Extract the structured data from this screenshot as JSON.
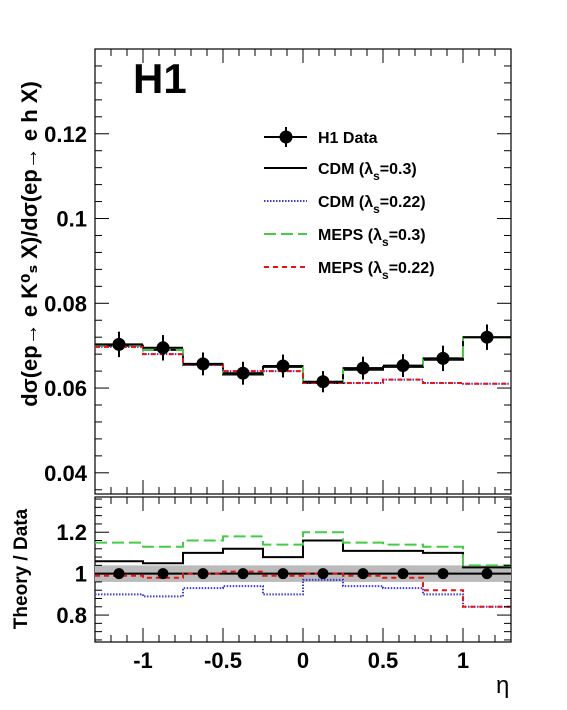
{
  "chart_data": [
    {
      "type": "line",
      "panel": "main",
      "badge": "H1",
      "ylabel": "dσ(ep→ e K⁰ₛ X)/dσ(ep→ e h X)",
      "xlim": [
        -1.3,
        1.3
      ],
      "ylim": [
        0.035,
        0.14
      ],
      "y_ticks": [
        0.04,
        0.06,
        0.08,
        0.1,
        0.12
      ],
      "y_tick_labels": [
        "0.04",
        "0.06",
        "0.08",
        "0.1",
        "0.12"
      ],
      "bin_edges": [
        -1.3,
        -1.0,
        -0.75,
        -0.5,
        -0.25,
        0.0,
        0.25,
        0.5,
        0.75,
        1.0,
        1.3
      ],
      "data": {
        "name": "H1 Data",
        "color": "#000000",
        "x": [
          -1.15,
          -0.875,
          -0.625,
          -0.375,
          -0.125,
          0.125,
          0.375,
          0.625,
          0.875,
          1.15
        ],
        "y": [
          0.0703,
          0.0695,
          0.0657,
          0.0635,
          0.0652,
          0.0615,
          0.0647,
          0.0653,
          0.067,
          0.072
        ],
        "err": [
          0.003,
          0.003,
          0.0027,
          0.0027,
          0.0027,
          0.0025,
          0.0027,
          0.0027,
          0.003,
          0.003
        ]
      },
      "series": [
        {
          "name": "CDM   (λs=0.3)",
          "label_main": "CDM   (λ",
          "label_sub": "s",
          "label_tail": "=0.3)",
          "color": "#000000",
          "dash": "",
          "values": [
            0.07,
            0.069,
            0.0655,
            0.0632,
            0.065,
            0.0612,
            0.0643,
            0.065,
            0.0667,
            0.072
          ]
        },
        {
          "name": "CDM   (λs=0.22)",
          "label_main": "CDM   (λ",
          "label_sub": "s",
          "label_tail": "=0.22)",
          "color": "#3c3cdc",
          "dash": "1.5,1.5",
          "values": [
            0.0697,
            0.068,
            0.0655,
            0.064,
            0.064,
            0.0612,
            0.0612,
            0.062,
            0.0612,
            0.061
          ]
        },
        {
          "name": "MEPS (λs=0.3)",
          "label_main": "MEPS (λ",
          "label_sub": "s",
          "label_tail": "=0.3)",
          "color": "#44cc44",
          "dash": "12,5",
          "values": [
            0.07,
            0.069,
            0.0657,
            0.0635,
            0.0652,
            0.0615,
            0.0647,
            0.0653,
            0.067,
            0.072
          ]
        },
        {
          "name": "MEPS (λs=0.22)",
          "label_main": "MEPS (λ",
          "label_sub": "s",
          "label_tail": "=0.22)",
          "color": "#ee1111",
          "dash": "5,4",
          "values": [
            0.0697,
            0.068,
            0.0655,
            0.064,
            0.064,
            0.0612,
            0.0612,
            0.062,
            0.0612,
            0.061
          ]
        }
      ],
      "legend_position": "upper-right"
    },
    {
      "type": "line",
      "panel": "ratio",
      "ylabel": "Theory / Data",
      "xlabel": "η",
      "xlim": [
        -1.3,
        1.3
      ],
      "ylim": [
        0.67,
        1.37
      ],
      "y_ticks": [
        0.8,
        1.0,
        1.2
      ],
      "y_tick_labels": [
        "0.8",
        "1",
        "1.2"
      ],
      "x_ticks": [
        -1,
        -0.5,
        0,
        0.5,
        1
      ],
      "x_tick_labels": [
        "-1",
        "-0.5",
        "0",
        "0.5",
        "1"
      ],
      "bin_edges": [
        -1.3,
        -1.0,
        -0.75,
        -0.5,
        -0.25,
        0.0,
        0.25,
        0.5,
        0.75,
        1.0,
        1.3
      ],
      "band": {
        "low": 0.96,
        "high": 1.04,
        "color": "#bbbbbb"
      },
      "data_points": {
        "x": [
          -1.15,
          -0.875,
          -0.625,
          -0.375,
          -0.125,
          0.125,
          0.375,
          0.625,
          0.875,
          1.15
        ],
        "y": [
          1,
          1,
          1,
          1,
          1,
          1,
          1,
          1,
          1,
          1
        ]
      },
      "series": [
        {
          "name": "CDM (λs=0.3)",
          "color": "#000000",
          "dash": "",
          "values": [
            1.06,
            1.05,
            1.1,
            1.12,
            1.08,
            1.16,
            1.11,
            1.11,
            1.1,
            1.03
          ]
        },
        {
          "name": "CDM (λs=0.22)",
          "color": "#3c3cdc",
          "dash": "1.5,1.5",
          "values": [
            0.9,
            0.89,
            0.93,
            0.94,
            0.9,
            0.97,
            0.94,
            0.93,
            0.9,
            0.84
          ]
        },
        {
          "name": "MEPS (λs=0.3)",
          "color": "#44cc44",
          "dash": "12,5",
          "values": [
            1.15,
            1.13,
            1.16,
            1.18,
            1.14,
            1.2,
            1.15,
            1.14,
            1.13,
            1.04
          ]
        },
        {
          "name": "MEPS (λs=0.22)",
          "color": "#ee1111",
          "dash": "5,4",
          "values": [
            0.99,
            0.98,
            1.0,
            1.01,
            0.99,
            1.0,
            0.99,
            0.98,
            0.92,
            0.84
          ]
        }
      ]
    }
  ]
}
